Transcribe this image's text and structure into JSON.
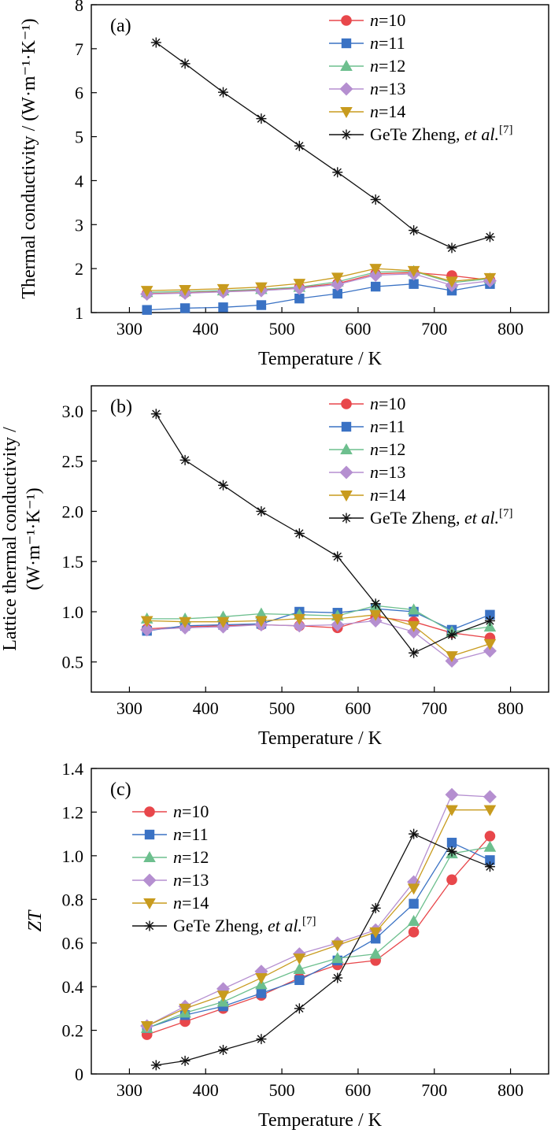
{
  "colors": {
    "n10": "#e8474b",
    "n11": "#3a72c4",
    "n12": "#6dbf8e",
    "n13": "#b58fd0",
    "n14": "#c89b1e",
    "ref": "#111111"
  },
  "chart_data": [
    {
      "type": "line",
      "panel_label": "(a)",
      "xlabel": "Temperature / K",
      "ylabel": "Thermal conductivity / (W·m⁻¹·K⁻¹)",
      "xlim": [
        250,
        850
      ],
      "ylim": [
        1,
        8
      ],
      "xticks": [
        "300",
        "400",
        "500",
        "600",
        "700",
        "800"
      ],
      "yticks": [
        "1",
        "2",
        "3",
        "4",
        "5",
        "6",
        "7",
        "8"
      ],
      "legend_position": "top-right",
      "series": [
        {
          "name": "n=10",
          "italic": "n",
          "rest": "=10",
          "marker": "circle",
          "color_key": "n10",
          "x": [
            323,
            373,
            423,
            473,
            523,
            573,
            623,
            673,
            723,
            773
          ],
          "y": [
            1.43,
            1.45,
            1.48,
            1.52,
            1.57,
            1.66,
            1.88,
            1.91,
            1.84,
            1.74
          ]
        },
        {
          "name": "n=11",
          "italic": "n",
          "rest": "=11",
          "marker": "square",
          "color_key": "n11",
          "x": [
            323,
            373,
            423,
            473,
            523,
            573,
            623,
            673,
            723,
            773
          ],
          "y": [
            1.06,
            1.1,
            1.12,
            1.17,
            1.32,
            1.43,
            1.59,
            1.65,
            1.5,
            1.65
          ]
        },
        {
          "name": "n=12",
          "italic": "n",
          "rest": "=12",
          "marker": "triangle-up",
          "color_key": "n12",
          "x": [
            323,
            373,
            423,
            473,
            523,
            573,
            623,
            673,
            723,
            773
          ],
          "y": [
            1.46,
            1.48,
            1.5,
            1.53,
            1.58,
            1.7,
            1.92,
            1.94,
            1.68,
            1.77
          ]
        },
        {
          "name": "n=13",
          "italic": "n",
          "rest": "=13",
          "marker": "diamond",
          "color_key": "n13",
          "x": [
            323,
            373,
            423,
            473,
            523,
            573,
            623,
            673,
            723,
            773
          ],
          "y": [
            1.42,
            1.44,
            1.47,
            1.5,
            1.55,
            1.64,
            1.85,
            1.88,
            1.62,
            1.72
          ]
        },
        {
          "name": "n=14",
          "italic": "n",
          "rest": "=14",
          "marker": "triangle-down",
          "color_key": "n14",
          "x": [
            323,
            373,
            423,
            473,
            523,
            573,
            623,
            673,
            723,
            773
          ],
          "y": [
            1.5,
            1.52,
            1.54,
            1.58,
            1.66,
            1.8,
            2.0,
            1.95,
            1.71,
            1.79
          ]
        },
        {
          "name": "GeTe Zheng, et al.[7]",
          "plain": "GeTe Zheng, ",
          "italic2": "et al.",
          "sup": "[7]",
          "marker": "asterisk",
          "color_key": "ref",
          "x": [
            335,
            373,
            423,
            473,
            523,
            573,
            623,
            673,
            723,
            773
          ],
          "y": [
            7.14,
            6.66,
            6.01,
            5.41,
            4.79,
            4.19,
            3.57,
            2.87,
            2.47,
            2.72
          ]
        }
      ]
    },
    {
      "type": "line",
      "panel_label": "(b)",
      "xlabel": "Temperature / K",
      "ylabel_line1": "Lattice thermal conductivity /",
      "ylabel_line2": "(W·m⁻¹·K⁻¹)",
      "xlim": [
        250,
        850
      ],
      "ylim": [
        0.2,
        3.25
      ],
      "xticks": [
        "300",
        "400",
        "500",
        "600",
        "700",
        "800"
      ],
      "yticks": [
        "0.5",
        "1.0",
        "1.5",
        "2.0",
        "2.5",
        "3.0"
      ],
      "legend_position": "top-right",
      "series": [
        {
          "name": "n=10",
          "italic": "n",
          "rest": "=10",
          "marker": "circle",
          "color_key": "n10",
          "x": [
            323,
            373,
            423,
            473,
            523,
            573,
            623,
            673,
            723,
            773
          ],
          "y": [
            0.83,
            0.85,
            0.86,
            0.87,
            0.86,
            0.84,
            0.95,
            0.9,
            0.79,
            0.74
          ]
        },
        {
          "name": "n=11",
          "italic": "n",
          "rest": "=11",
          "marker": "square",
          "color_key": "n11",
          "x": [
            323,
            373,
            423,
            473,
            523,
            573,
            623,
            673,
            723,
            773
          ],
          "y": [
            0.81,
            0.86,
            0.87,
            0.88,
            1.0,
            0.99,
            1.03,
            1.0,
            0.82,
            0.97
          ]
        },
        {
          "name": "n=12",
          "italic": "n",
          "rest": "=12",
          "marker": "triangle-up",
          "color_key": "n12",
          "x": [
            323,
            373,
            423,
            473,
            523,
            573,
            623,
            673,
            723,
            773
          ],
          "y": [
            0.93,
            0.93,
            0.95,
            0.98,
            0.97,
            0.96,
            1.06,
            1.02,
            0.8,
            0.85
          ]
        },
        {
          "name": "n=13",
          "italic": "n",
          "rest": "=13",
          "marker": "diamond",
          "color_key": "n13",
          "x": [
            323,
            373,
            423,
            473,
            523,
            573,
            623,
            673,
            723,
            773
          ],
          "y": [
            0.82,
            0.84,
            0.85,
            0.87,
            0.86,
            0.87,
            0.91,
            0.8,
            0.51,
            0.61
          ]
        },
        {
          "name": "n=14",
          "italic": "n",
          "rest": "=14",
          "marker": "triangle-down",
          "color_key": "n14",
          "x": [
            323,
            373,
            423,
            473,
            523,
            573,
            623,
            673,
            723,
            773
          ],
          "y": [
            0.91,
            0.9,
            0.9,
            0.91,
            0.93,
            0.93,
            0.97,
            0.86,
            0.56,
            0.68
          ]
        },
        {
          "name": "GeTe Zheng, et al.[7]",
          "plain": "GeTe Zheng, ",
          "italic2": "et al.",
          "sup": "[7]",
          "marker": "asterisk",
          "color_key": "ref",
          "x": [
            335,
            373,
            423,
            473,
            523,
            573,
            623,
            673,
            723,
            773
          ],
          "y": [
            2.97,
            2.51,
            2.26,
            2.0,
            1.78,
            1.55,
            1.08,
            0.59,
            0.77,
            0.91
          ]
        }
      ]
    },
    {
      "type": "line",
      "panel_label": "(c)",
      "xlabel": "Temperature / K",
      "ylabel": "ZT",
      "xlim": [
        250,
        850
      ],
      "ylim": [
        0,
        1.4
      ],
      "xticks": [
        "300",
        "400",
        "500",
        "600",
        "700",
        "800"
      ],
      "yticks": [
        "0",
        "0.2",
        "0.4",
        "0.6",
        "0.8",
        "1.0",
        "1.2",
        "1.4"
      ],
      "legend_position": "top-left",
      "series": [
        {
          "name": "n=10",
          "italic": "n",
          "rest": "=10",
          "marker": "circle",
          "color_key": "n10",
          "x": [
            323,
            373,
            423,
            473,
            523,
            573,
            623,
            673,
            723,
            773
          ],
          "y": [
            0.18,
            0.24,
            0.3,
            0.36,
            0.44,
            0.5,
            0.52,
            0.65,
            0.89,
            1.09
          ]
        },
        {
          "name": "n=11",
          "italic": "n",
          "rest": "=11",
          "marker": "square",
          "color_key": "n11",
          "x": [
            323,
            373,
            423,
            473,
            523,
            573,
            623,
            673,
            723,
            773
          ],
          "y": [
            0.21,
            0.27,
            0.31,
            0.37,
            0.43,
            0.52,
            0.62,
            0.78,
            1.06,
            0.98
          ]
        },
        {
          "name": "n=12",
          "italic": "n",
          "rest": "=12",
          "marker": "triangle-up",
          "color_key": "n12",
          "x": [
            323,
            373,
            423,
            473,
            523,
            573,
            623,
            673,
            723,
            773
          ],
          "y": [
            0.21,
            0.28,
            0.33,
            0.41,
            0.48,
            0.53,
            0.55,
            0.7,
            1.01,
            1.04
          ]
        },
        {
          "name": "n=13",
          "italic": "n",
          "rest": "=13",
          "marker": "diamond",
          "color_key": "n13",
          "x": [
            323,
            373,
            423,
            473,
            523,
            573,
            623,
            673,
            723,
            773
          ],
          "y": [
            0.22,
            0.31,
            0.39,
            0.47,
            0.55,
            0.6,
            0.66,
            0.88,
            1.28,
            1.27
          ]
        },
        {
          "name": "n=14",
          "italic": "n",
          "rest": "=14",
          "marker": "triangle-down",
          "color_key": "n14",
          "x": [
            323,
            373,
            423,
            473,
            523,
            573,
            623,
            673,
            723,
            773
          ],
          "y": [
            0.22,
            0.3,
            0.36,
            0.44,
            0.53,
            0.59,
            0.65,
            0.85,
            1.21,
            1.21
          ]
        },
        {
          "name": "GeTe Zheng, et al.[7]",
          "plain": "GeTe Zheng, ",
          "italic2": "et al.",
          "sup": "[7]",
          "marker": "asterisk",
          "color_key": "ref",
          "x": [
            335,
            373,
            423,
            473,
            523,
            573,
            623,
            673,
            723,
            773
          ],
          "y": [
            0.04,
            0.06,
            0.11,
            0.16,
            0.3,
            0.44,
            0.76,
            1.1,
            1.02,
            0.95
          ]
        }
      ]
    }
  ]
}
